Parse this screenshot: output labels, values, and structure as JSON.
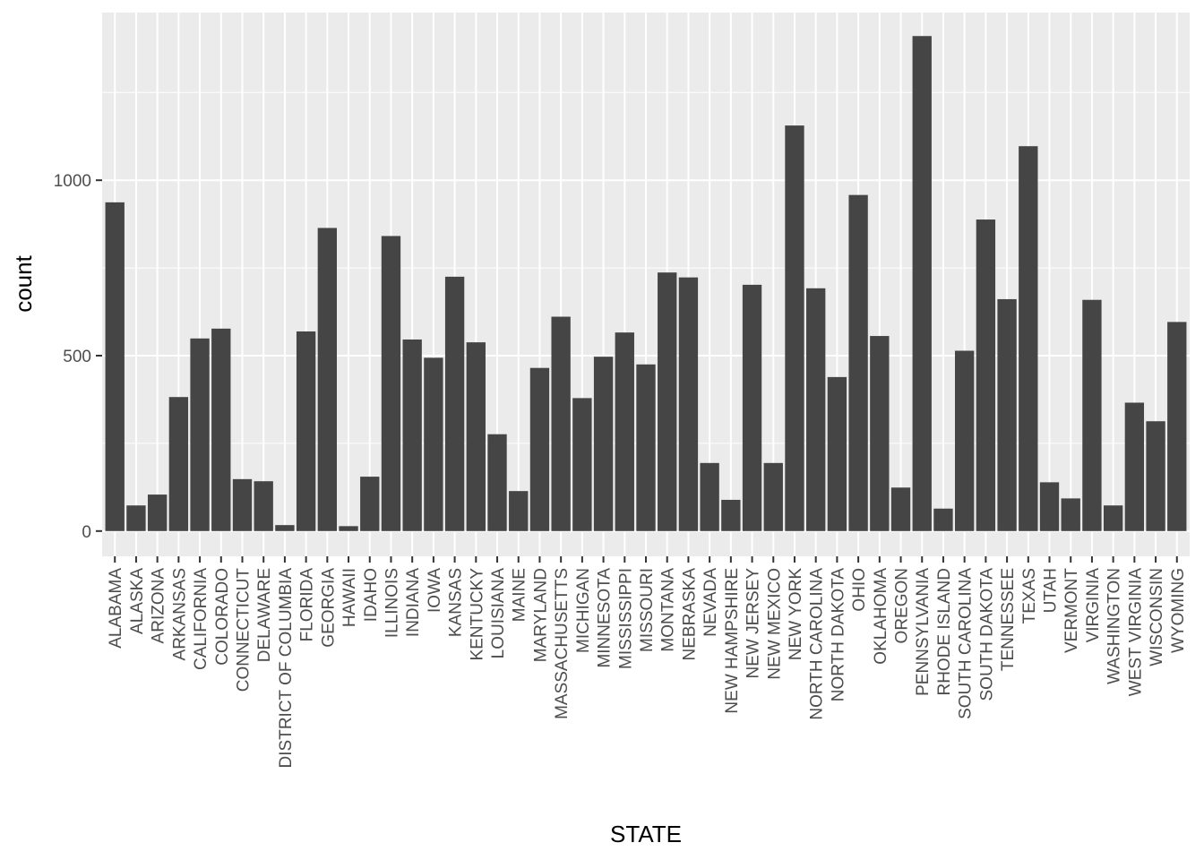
{
  "chart_data": {
    "type": "bar",
    "title": "",
    "xlabel": "STATE",
    "ylabel": "count",
    "ylim": [
      -72,
      1478
    ],
    "yticks": [
      0,
      500,
      1000
    ],
    "grid": true,
    "legend": "none",
    "colors": {
      "panel": "#ebebeb",
      "grid": "#ffffff",
      "bar": "#454545",
      "text": "#4d4d4d",
      "title": "#000000"
    },
    "categories": [
      "ALABAMA",
      "ALASKA",
      "ARIZONA",
      "ARKANSAS",
      "CALIFORNIA",
      "COLORADO",
      "CONNECTICUT",
      "DELAWARE",
      "DISTRICT OF COLUMBIA",
      "FLORIDA",
      "GEORGIA",
      "HAWAII",
      "IDAHO",
      "ILLINOIS",
      "INDIANA",
      "IOWA",
      "KANSAS",
      "KENTUCKY",
      "LOUISIANA",
      "MAINE",
      "MARYLAND",
      "MASSACHUSETTS",
      "MICHIGAN",
      "MINNESOTA",
      "MISSISSIPPI",
      "MISSOURI",
      "MONTANA",
      "NEBRASKA",
      "NEVADA",
      "NEW HAMPSHIRE",
      "NEW JERSEY",
      "NEW MEXICO",
      "NEW YORK",
      "NORTH CAROLINA",
      "NORTH DAKOTA",
      "OHIO",
      "OKLAHOMA",
      "OREGON",
      "PENNSYLVANIA",
      "RHODE ISLAND",
      "SOUTH CAROLINA",
      "SOUTH DAKOTA",
      "TENNESSEE",
      "TEXAS",
      "UTAH",
      "VERMONT",
      "VIRGINIA",
      "WASHINGTON",
      "WEST VIRGINIA",
      "WISCONSIN",
      "WYOMING"
    ],
    "values": [
      937,
      73,
      104,
      382,
      549,
      577,
      148,
      142,
      17,
      569,
      864,
      14,
      155,
      841,
      546,
      494,
      725,
      538,
      276,
      114,
      465,
      611,
      379,
      497,
      566,
      475,
      737,
      723,
      194,
      89,
      702,
      194,
      1156,
      692,
      439,
      958,
      556,
      124,
      1411,
      64,
      514,
      888,
      661,
      1097,
      139,
      93,
      659,
      73,
      366,
      313,
      596
    ]
  }
}
